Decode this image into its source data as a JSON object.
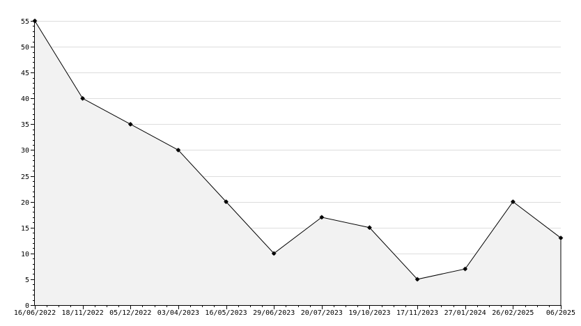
{
  "chart_data": {
    "type": "area",
    "title": "",
    "xlabel": "",
    "ylabel": "",
    "categories": [
      "16/06/2022",
      "18/11/2022",
      "05/12/2022",
      "03/04/2023",
      "16/05/2023",
      "29/06/2023",
      "20/07/2023",
      "19/10/2023",
      "17/11/2023",
      "27/01/2024",
      "26/02/2025",
      "06/2025"
    ],
    "values": [
      55,
      40,
      35,
      30,
      20,
      10,
      17,
      15,
      5,
      7,
      20,
      13
    ],
    "ylim": [
      0,
      55
    ],
    "y_ticks": [
      0,
      5,
      10,
      15,
      20,
      25,
      30,
      35,
      40,
      45,
      50,
      55
    ],
    "grid": true,
    "legend": "none",
    "colors": {
      "fill": "#f2f2f2",
      "line": "#000000",
      "marker": "#000000",
      "grid": "#dddddd",
      "axis": "#000000"
    }
  }
}
